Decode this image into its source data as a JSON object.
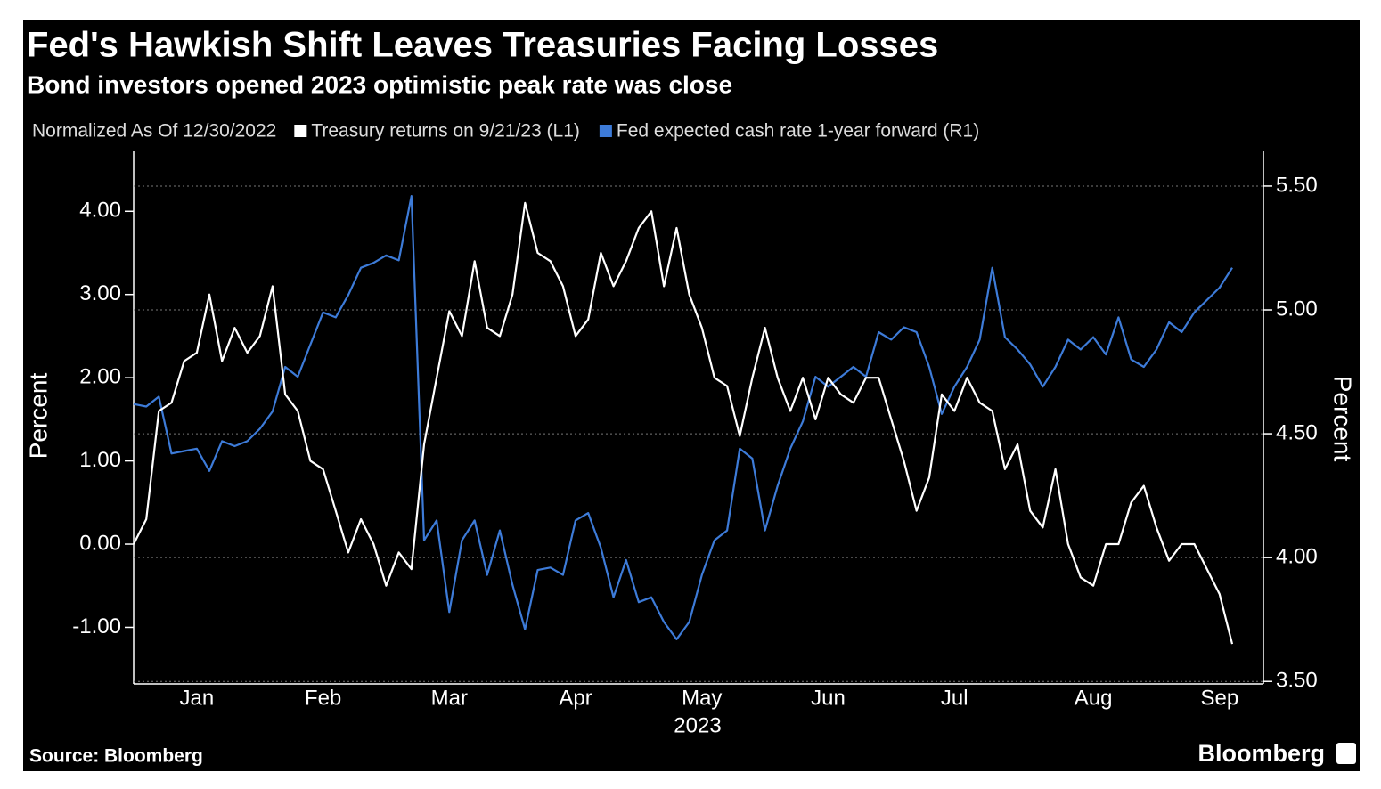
{
  "chart_data": {
    "type": "line",
    "title": "Fed's Hawkish Shift Leaves Treasuries Facing Losses",
    "subtitle": "Bond investors opened 2023 optimistic peak rate was close",
    "legend_title": "Normalized As Of 12/30/2022",
    "ylabel": "Percent",
    "y2label": "Percent",
    "xlabel": "2023",
    "source": "Source: Bloomberg",
    "brand": "Bloomberg",
    "grid": true,
    "categories": [
      null,
      null,
      null,
      null,
      null,
      "Jan",
      null,
      null,
      null,
      null,
      null,
      null,
      null,
      null,
      null,
      "Feb",
      null,
      null,
      null,
      null,
      null,
      null,
      null,
      null,
      null,
      "Mar",
      null,
      null,
      null,
      null,
      null,
      null,
      null,
      null,
      null,
      "Apr",
      null,
      null,
      null,
      null,
      null,
      null,
      null,
      null,
      null,
      "May",
      null,
      null,
      null,
      null,
      null,
      null,
      null,
      null,
      null,
      "Jun",
      null,
      null,
      null,
      null,
      null,
      null,
      null,
      null,
      null,
      "Jul",
      null,
      null,
      null,
      null,
      null,
      null,
      null,
      null,
      null,
      null,
      "Aug",
      null,
      null,
      null,
      null,
      null,
      null,
      null,
      null,
      null,
      "Sep",
      null
    ],
    "ylim": [
      -1.68,
      4.72
    ],
    "yticks": [
      {
        "value": -1,
        "label": "-1.00"
      },
      {
        "value": 0,
        "label": "0.00"
      },
      {
        "value": 1,
        "label": "1.00"
      },
      {
        "value": 2,
        "label": "2.00"
      },
      {
        "value": 3,
        "label": "3.00"
      },
      {
        "value": 4,
        "label": "4.00"
      }
    ],
    "y2lim": [
      3.49,
      5.64
    ],
    "y2ticks": [
      {
        "value": 3.5,
        "label": "3.50"
      },
      {
        "value": 4,
        "label": "4.00"
      },
      {
        "value": 4.5,
        "label": "4.50"
      },
      {
        "value": 5,
        "label": "5.00"
      },
      {
        "value": 5.5,
        "label": "5.50"
      }
    ],
    "series": [
      {
        "name": "Treasury returns on 9/21/23 (L1)",
        "color": "#ffffff",
        "values": [
          0.0,
          0.3,
          1.6,
          1.7,
          2.2,
          2.3,
          3.0,
          2.2,
          2.6,
          2.3,
          2.5,
          3.1,
          1.8,
          1.6,
          1.0,
          0.9,
          0.4,
          -0.1,
          0.3,
          0.0,
          -0.5,
          -0.1,
          -0.3,
          1.2,
          2.0,
          2.8,
          2.5,
          3.4,
          2.6,
          2.5,
          3.0,
          4.1,
          3.5,
          3.4,
          3.1,
          2.5,
          2.7,
          3.5,
          3.1,
          3.4,
          3.8,
          4.0,
          3.1,
          3.8,
          3.0,
          2.6,
          2.0,
          1.9,
          1.3,
          2.0,
          2.6,
          2.0,
          1.6,
          2.0,
          1.5,
          2.0,
          1.8,
          1.7,
          2.0,
          2.0,
          1.5,
          1.0,
          0.4,
          0.8,
          1.8,
          1.6,
          2.0,
          1.7,
          1.6,
          0.9,
          1.2,
          0.4,
          0.2,
          0.9,
          0.0,
          -0.4,
          -0.5,
          0.0,
          0.0,
          0.5,
          0.7,
          0.2,
          -0.2,
          0.0,
          0.0,
          -0.3,
          -0.6,
          -1.2
        ]
      },
      {
        "name": "Fed expected cash rate 1-year forward (R1)",
        "color": "#3d7bd8",
        "axis": "y2",
        "values": [
          4.62,
          4.61,
          4.65,
          4.42,
          4.43,
          4.44,
          4.35,
          4.47,
          4.45,
          4.47,
          4.52,
          4.59,
          4.77,
          4.73,
          4.86,
          4.99,
          4.97,
          5.06,
          5.17,
          5.19,
          5.22,
          5.2,
          5.46,
          4.07,
          4.15,
          3.78,
          4.07,
          4.15,
          3.93,
          4.11,
          3.89,
          3.71,
          3.95,
          3.96,
          3.93,
          4.15,
          4.18,
          4.04,
          3.84,
          3.99,
          3.82,
          3.84,
          3.74,
          3.67,
          3.74,
          3.93,
          4.07,
          4.11,
          4.44,
          4.4,
          4.11,
          4.29,
          4.44,
          4.55,
          4.73,
          4.69,
          4.73,
          4.77,
          4.73,
          4.91,
          4.88,
          4.93,
          4.91,
          4.77,
          4.58,
          4.69,
          4.77,
          4.88,
          5.17,
          4.89,
          4.84,
          4.78,
          4.69,
          4.77,
          4.88,
          4.84,
          4.89,
          4.82,
          4.97,
          4.8,
          4.77,
          4.84,
          4.95,
          4.91,
          4.99,
          5.04,
          5.09,
          5.17
        ]
      }
    ]
  }
}
